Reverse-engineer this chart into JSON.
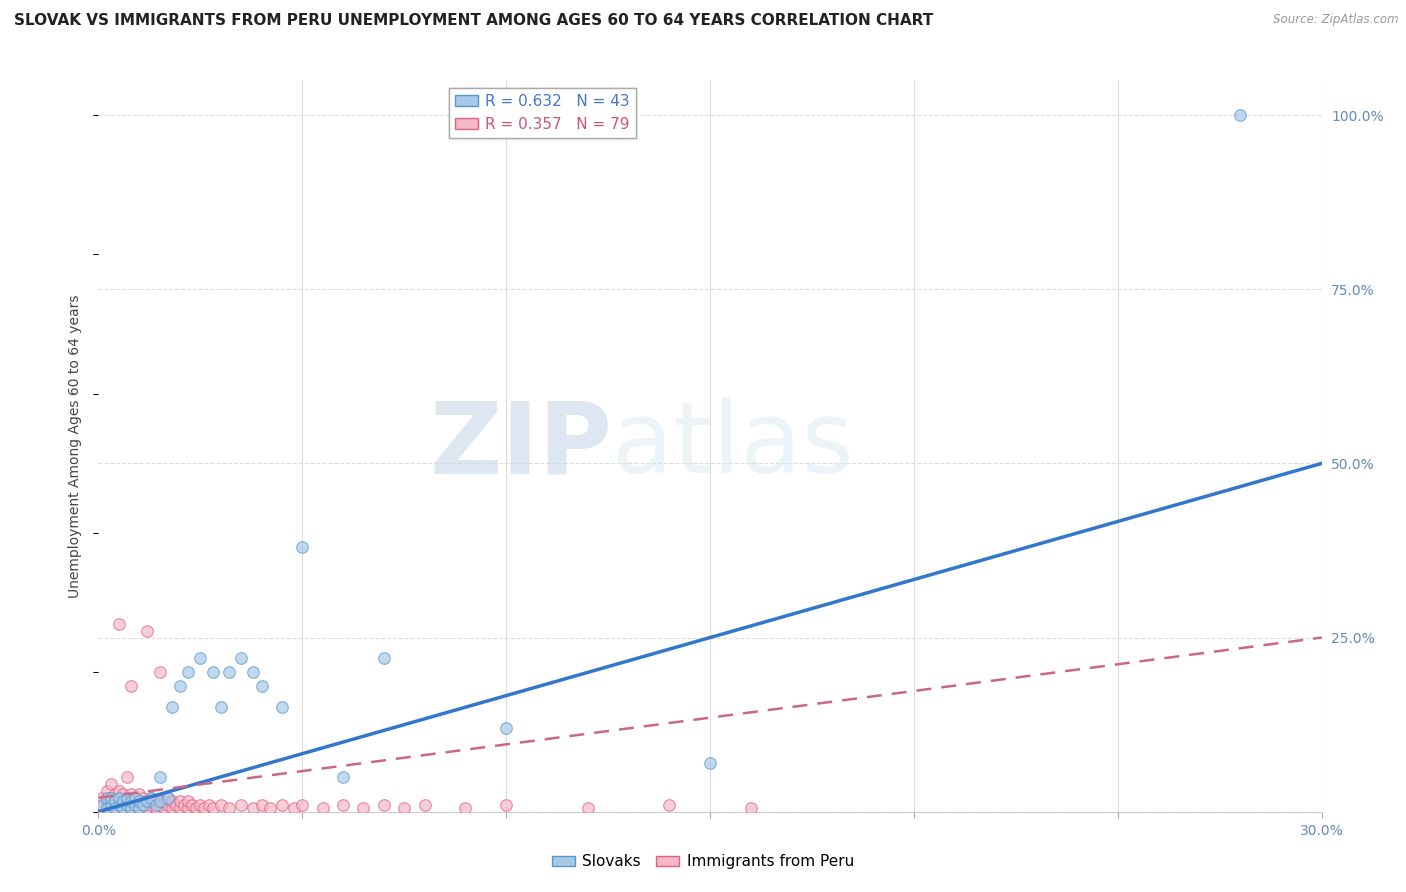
{
  "title": "SLOVAK VS IMMIGRANTS FROM PERU UNEMPLOYMENT AMONG AGES 60 TO 64 YEARS CORRELATION CHART",
  "source": "Source: ZipAtlas.com",
  "ylabel": "Unemployment Among Ages 60 to 64 years",
  "xlim": [
    0.0,
    0.3
  ],
  "ylim": [
    0.0,
    1.05
  ],
  "x_ticks": [
    0.0,
    0.05,
    0.1,
    0.15,
    0.2,
    0.25,
    0.3
  ],
  "x_tick_labels": [
    "0.0%",
    "",
    "",
    "",
    "",
    "",
    "30.0%"
  ],
  "y_ticks": [
    0.0,
    0.25,
    0.5,
    0.75,
    1.0
  ],
  "y_tick_labels_right": [
    "",
    "25.0%",
    "50.0%",
    "75.0%",
    "100.0%"
  ],
  "slovak_color": "#a8c8e8",
  "slovak_edge_color": "#5599cc",
  "peru_color": "#f5b8c8",
  "peru_edge_color": "#e06080",
  "slovak_line_color": "#3377cc",
  "peru_line_color": "#cc6688",
  "slovak_R": 0.632,
  "slovak_N": 43,
  "peru_R": 0.357,
  "peru_N": 79,
  "watermark_zip": "ZIP",
  "watermark_atlas": "atlas",
  "background_color": "#ffffff",
  "grid_color": "#dddddd",
  "title_fontsize": 11,
  "axis_label_fontsize": 10,
  "tick_fontsize": 10,
  "legend_fontsize": 11,
  "slovak_scatter_x": [
    0.001,
    0.002,
    0.002,
    0.003,
    0.003,
    0.004,
    0.004,
    0.005,
    0.005,
    0.006,
    0.006,
    0.007,
    0.007,
    0.008,
    0.008,
    0.009,
    0.009,
    0.01,
    0.01,
    0.011,
    0.012,
    0.013,
    0.014,
    0.015,
    0.015,
    0.017,
    0.018,
    0.02,
    0.022,
    0.025,
    0.028,
    0.03,
    0.032,
    0.035,
    0.038,
    0.04,
    0.045,
    0.05,
    0.06,
    0.07,
    0.1,
    0.15,
    0.28
  ],
  "slovak_scatter_y": [
    0.01,
    0.005,
    0.02,
    0.01,
    0.02,
    0.005,
    0.015,
    0.01,
    0.02,
    0.005,
    0.015,
    0.01,
    0.02,
    0.005,
    0.015,
    0.01,
    0.02,
    0.005,
    0.015,
    0.01,
    0.015,
    0.02,
    0.01,
    0.015,
    0.05,
    0.02,
    0.15,
    0.18,
    0.2,
    0.22,
    0.2,
    0.15,
    0.2,
    0.22,
    0.2,
    0.18,
    0.15,
    0.38,
    0.05,
    0.22,
    0.12,
    0.07,
    1.0
  ],
  "peru_scatter_x": [
    0.001,
    0.001,
    0.002,
    0.002,
    0.002,
    0.003,
    0.003,
    0.003,
    0.004,
    0.004,
    0.004,
    0.005,
    0.005,
    0.005,
    0.006,
    0.006,
    0.006,
    0.007,
    0.007,
    0.007,
    0.008,
    0.008,
    0.008,
    0.009,
    0.009,
    0.01,
    0.01,
    0.01,
    0.011,
    0.011,
    0.012,
    0.012,
    0.013,
    0.013,
    0.014,
    0.014,
    0.015,
    0.015,
    0.016,
    0.016,
    0.017,
    0.017,
    0.018,
    0.018,
    0.019,
    0.02,
    0.02,
    0.021,
    0.022,
    0.022,
    0.023,
    0.024,
    0.025,
    0.026,
    0.027,
    0.028,
    0.03,
    0.032,
    0.035,
    0.038,
    0.04,
    0.042,
    0.045,
    0.048,
    0.05,
    0.055,
    0.06,
    0.065,
    0.07,
    0.075,
    0.08,
    0.09,
    0.1,
    0.12,
    0.14,
    0.16,
    0.005,
    0.008,
    0.012
  ],
  "peru_scatter_y": [
    0.01,
    0.02,
    0.005,
    0.015,
    0.03,
    0.01,
    0.02,
    0.04,
    0.005,
    0.015,
    0.025,
    0.01,
    0.02,
    0.03,
    0.005,
    0.015,
    0.025,
    0.01,
    0.02,
    0.05,
    0.005,
    0.015,
    0.025,
    0.01,
    0.02,
    0.005,
    0.015,
    0.025,
    0.01,
    0.02,
    0.005,
    0.015,
    0.01,
    0.02,
    0.005,
    0.015,
    0.01,
    0.2,
    0.005,
    0.015,
    0.01,
    0.02,
    0.005,
    0.015,
    0.01,
    0.005,
    0.015,
    0.01,
    0.005,
    0.015,
    0.01,
    0.005,
    0.01,
    0.005,
    0.01,
    0.005,
    0.01,
    0.005,
    0.01,
    0.005,
    0.01,
    0.005,
    0.01,
    0.005,
    0.01,
    0.005,
    0.01,
    0.005,
    0.01,
    0.005,
    0.01,
    0.005,
    0.01,
    0.005,
    0.01,
    0.005,
    0.27,
    0.18,
    0.26
  ],
  "slovak_line_x": [
    0.0,
    0.3
  ],
  "slovak_line_y": [
    0.0,
    0.5
  ],
  "peru_line_x": [
    0.0,
    0.3
  ],
  "peru_line_y": [
    0.02,
    0.25
  ]
}
